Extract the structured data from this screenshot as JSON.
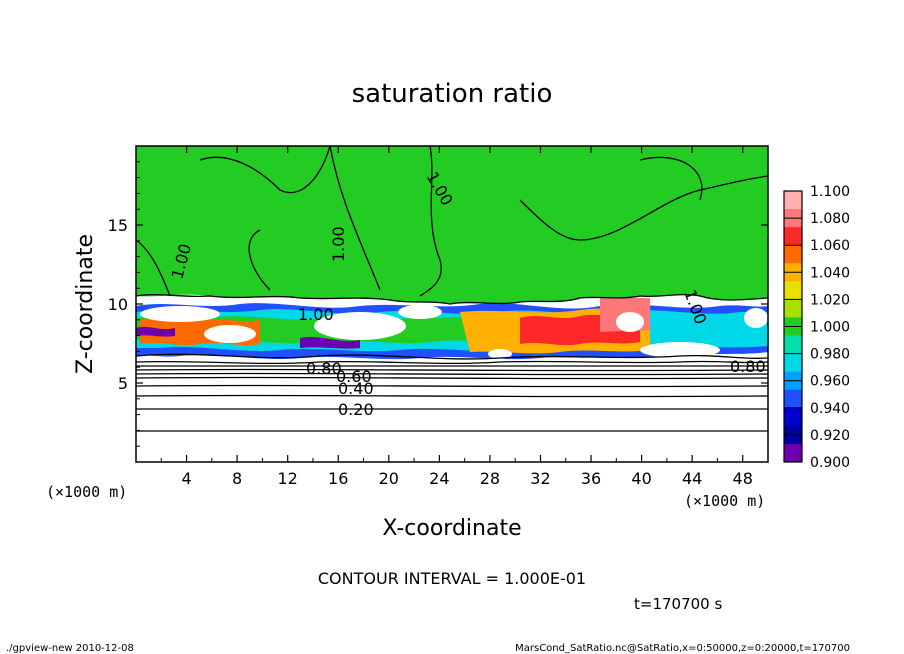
{
  "chart_data": {
    "type": "heatmap",
    "title": "saturation ratio",
    "xlabel": "X-coordinate",
    "ylabel": "Z-coordinate",
    "x_unit": "(×1000 m)",
    "y_unit": "(×1000 m)",
    "xlim": [
      0,
      50
    ],
    "ylim": [
      0,
      20
    ],
    "x_ticks": [
      4,
      8,
      12,
      16,
      20,
      24,
      28,
      32,
      36,
      40,
      44,
      48
    ],
    "y_ticks": [
      5,
      10,
      15
    ],
    "colorbar": {
      "levels": [
        "1.100",
        "1.080",
        "1.060",
        "1.040",
        "1.020",
        "1.000",
        "0.980",
        "0.960",
        "0.940",
        "0.920",
        "0.900"
      ],
      "colors": [
        "#ffb0b0",
        "#ff7878",
        "#ff2828",
        "#ff6a00",
        "#ffb000",
        "#e8e000",
        "#a8e000",
        "#22cc22",
        "#00e0a8",
        "#00d8e8",
        "#00a0ff",
        "#2050ff",
        "#0000d0",
        "#0000a0",
        "#6a00b0"
      ]
    },
    "contour_labels": [
      "1.00",
      "1.00",
      "1.00",
      "1.00",
      "1.00",
      "0.80",
      "0.80",
      "0.60",
      "0.40",
      "0.20"
    ],
    "contour_interval_text": "CONTOUR INTERVAL = 1.000E-01",
    "time_text": "t=170700 s"
  },
  "footer": {
    "left": "./gpview-new   2010-12-08",
    "right": "MarsCond_SatRatio.nc@SatRatio,x=0:50000,z=0:20000,t=170700"
  }
}
